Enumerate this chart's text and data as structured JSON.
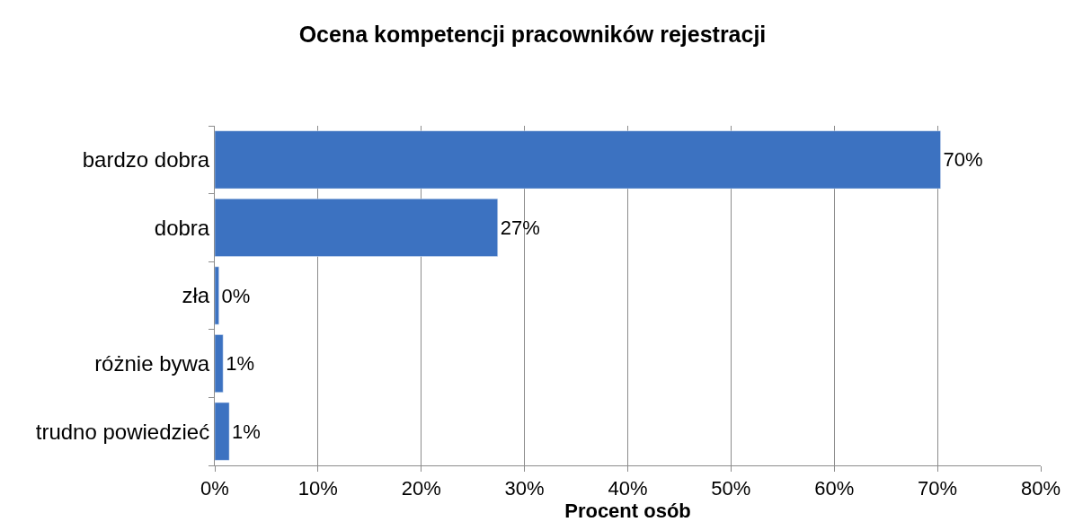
{
  "chart_data": {
    "type": "bar",
    "orientation": "horizontal",
    "title": "Ocena kompetencji pracowników rejestracji",
    "xlabel": "Procent osób",
    "categories": [
      "bardzo dobra",
      "dobra",
      "zła",
      "różnie bywa",
      "trudno powiedzieć"
    ],
    "values": [
      70.3,
      27.4,
      0.4,
      0.8,
      1.4
    ],
    "value_labels": [
      "70%",
      "27%",
      "0%",
      "1%",
      "1%"
    ],
    "color": "#3c72c1",
    "xlim": [
      0,
      80
    ],
    "xticks": [
      {
        "value": 0,
        "label": "0%"
      },
      {
        "value": 10,
        "label": "10%"
      },
      {
        "value": 20,
        "label": "20%"
      },
      {
        "value": 30,
        "label": "30%"
      },
      {
        "value": 40,
        "label": "40%"
      },
      {
        "value": 50,
        "label": "50%"
      },
      {
        "value": 60,
        "label": "60%"
      },
      {
        "value": 70,
        "label": "70%"
      },
      {
        "value": 80,
        "label": "80%"
      }
    ],
    "grid": "x"
  }
}
